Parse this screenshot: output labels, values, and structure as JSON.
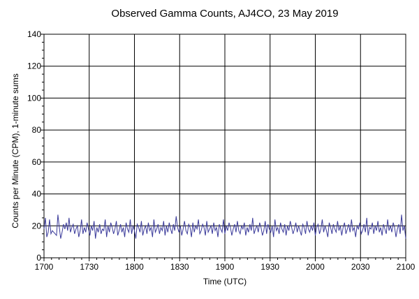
{
  "chart_data": {
    "type": "line",
    "title": "Observed Gamma Counts, AJ4CO, 23 May 2019",
    "xlabel": "Time (UTC)",
    "ylabel": "Counts per Minute (CPM), 1-minute sums",
    "x_tick_labels": [
      "1700",
      "1730",
      "1800",
      "1830",
      "1900",
      "1930",
      "2000",
      "2030",
      "2100"
    ],
    "y_tick_labels": [
      "0",
      "20",
      "40",
      "60",
      "80",
      "100",
      "120",
      "140"
    ],
    "xlim": [
      0,
      240
    ],
    "ylim": [
      0,
      140
    ],
    "grid": true,
    "colors": {
      "line": "#3a3a9a",
      "grid": "#000000",
      "background": "#ffffff"
    },
    "series": [
      {
        "values": [
          18,
          25,
          13,
          16,
          24,
          15,
          17,
          16,
          15,
          14,
          27,
          19,
          12,
          16,
          21,
          18,
          22,
          17,
          25,
          16,
          19,
          21,
          15,
          18,
          20,
          13,
          17,
          24,
          15,
          19,
          16,
          22,
          18,
          14,
          20,
          17,
          23,
          12,
          19,
          16,
          21,
          15,
          18,
          17,
          24,
          13,
          20,
          16,
          22,
          19,
          15,
          18,
          23,
          14,
          17,
          21,
          16,
          19,
          13,
          22,
          18,
          16,
          24,
          15,
          20,
          17,
          12,
          21,
          19,
          16,
          23,
          14,
          18,
          20,
          15,
          22,
          17,
          19,
          13,
          24,
          16,
          18,
          21,
          15,
          19,
          17,
          23,
          14,
          20,
          16,
          22,
          18,
          15,
          21,
          17,
          26,
          19,
          16,
          20,
          14,
          18,
          23,
          17,
          15,
          21,
          19,
          13,
          22,
          16,
          20,
          18,
          24,
          15,
          17,
          21,
          19,
          14,
          23,
          16,
          18,
          20,
          15,
          22,
          17,
          19,
          13,
          21,
          18,
          16,
          24,
          15,
          20,
          17,
          22,
          19,
          14,
          18,
          21,
          16,
          23,
          17,
          15,
          20,
          18,
          22,
          14,
          19,
          16,
          21,
          17,
          25,
          15,
          18,
          20,
          16,
          22,
          19,
          14,
          17,
          23,
          15,
          21,
          18,
          16,
          20,
          13,
          24,
          17,
          19,
          15,
          22,
          18,
          16,
          21,
          14,
          20,
          17,
          23,
          19,
          15,
          18,
          22,
          16,
          20,
          17,
          14,
          21,
          19,
          15,
          23,
          18,
          16,
          20,
          17,
          22,
          14,
          19,
          21,
          15,
          18,
          24,
          16,
          20,
          17,
          13,
          22,
          19,
          15,
          21,
          18,
          16,
          23,
          17,
          20,
          14,
          19,
          22,
          15,
          18,
          21,
          16,
          24,
          17,
          19,
          13,
          20,
          18,
          22,
          15,
          17,
          21,
          16,
          25,
          14,
          19,
          18,
          22,
          15,
          20,
          17,
          23,
          16,
          19,
          14,
          21,
          18,
          15,
          24,
          17,
          20,
          16,
          22,
          19,
          13,
          18,
          21,
          15,
          27,
          17,
          20,
          12
        ]
      }
    ]
  }
}
